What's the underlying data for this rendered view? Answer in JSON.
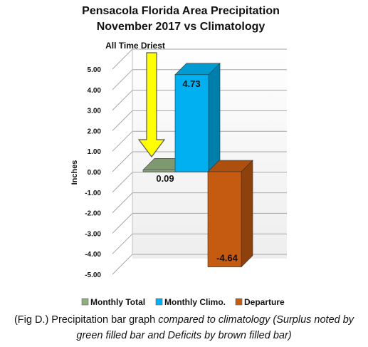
{
  "chart_data": {
    "type": "bar",
    "title_lines": [
      "Pensacola Florida Area Precipitation",
      "November 2017 vs Climatology"
    ],
    "ylabel": "Inches",
    "ylim": [
      -5,
      5
    ],
    "yticks": [
      "5.00",
      "4.00",
      "3.00",
      "2.00",
      "1.00",
      "0.00",
      "-1.00",
      "-2.00",
      "-3.00",
      "-4.00",
      "-5.00"
    ],
    "series": [
      {
        "name": "Monthly Total",
        "value": 0.09,
        "label": "0.09",
        "color": "#8fae7e"
      },
      {
        "name": "Monthly Climo.",
        "value": 4.73,
        "label": "4.73",
        "color": "#00b0f0"
      },
      {
        "name": "Departure",
        "value": -4.64,
        "label": "-4.64",
        "color": "#c55a11"
      }
    ],
    "annotation": {
      "text": "All Time Driest",
      "arrow_color": "#ffff00"
    },
    "grid": true,
    "legend_position": "bottom"
  },
  "caption": {
    "prefix": "(Fig D.) Precipitation bar graph ",
    "italic": "compared to climatology (Surplus noted by green filled bar and Deficits by brown filled bar)"
  }
}
